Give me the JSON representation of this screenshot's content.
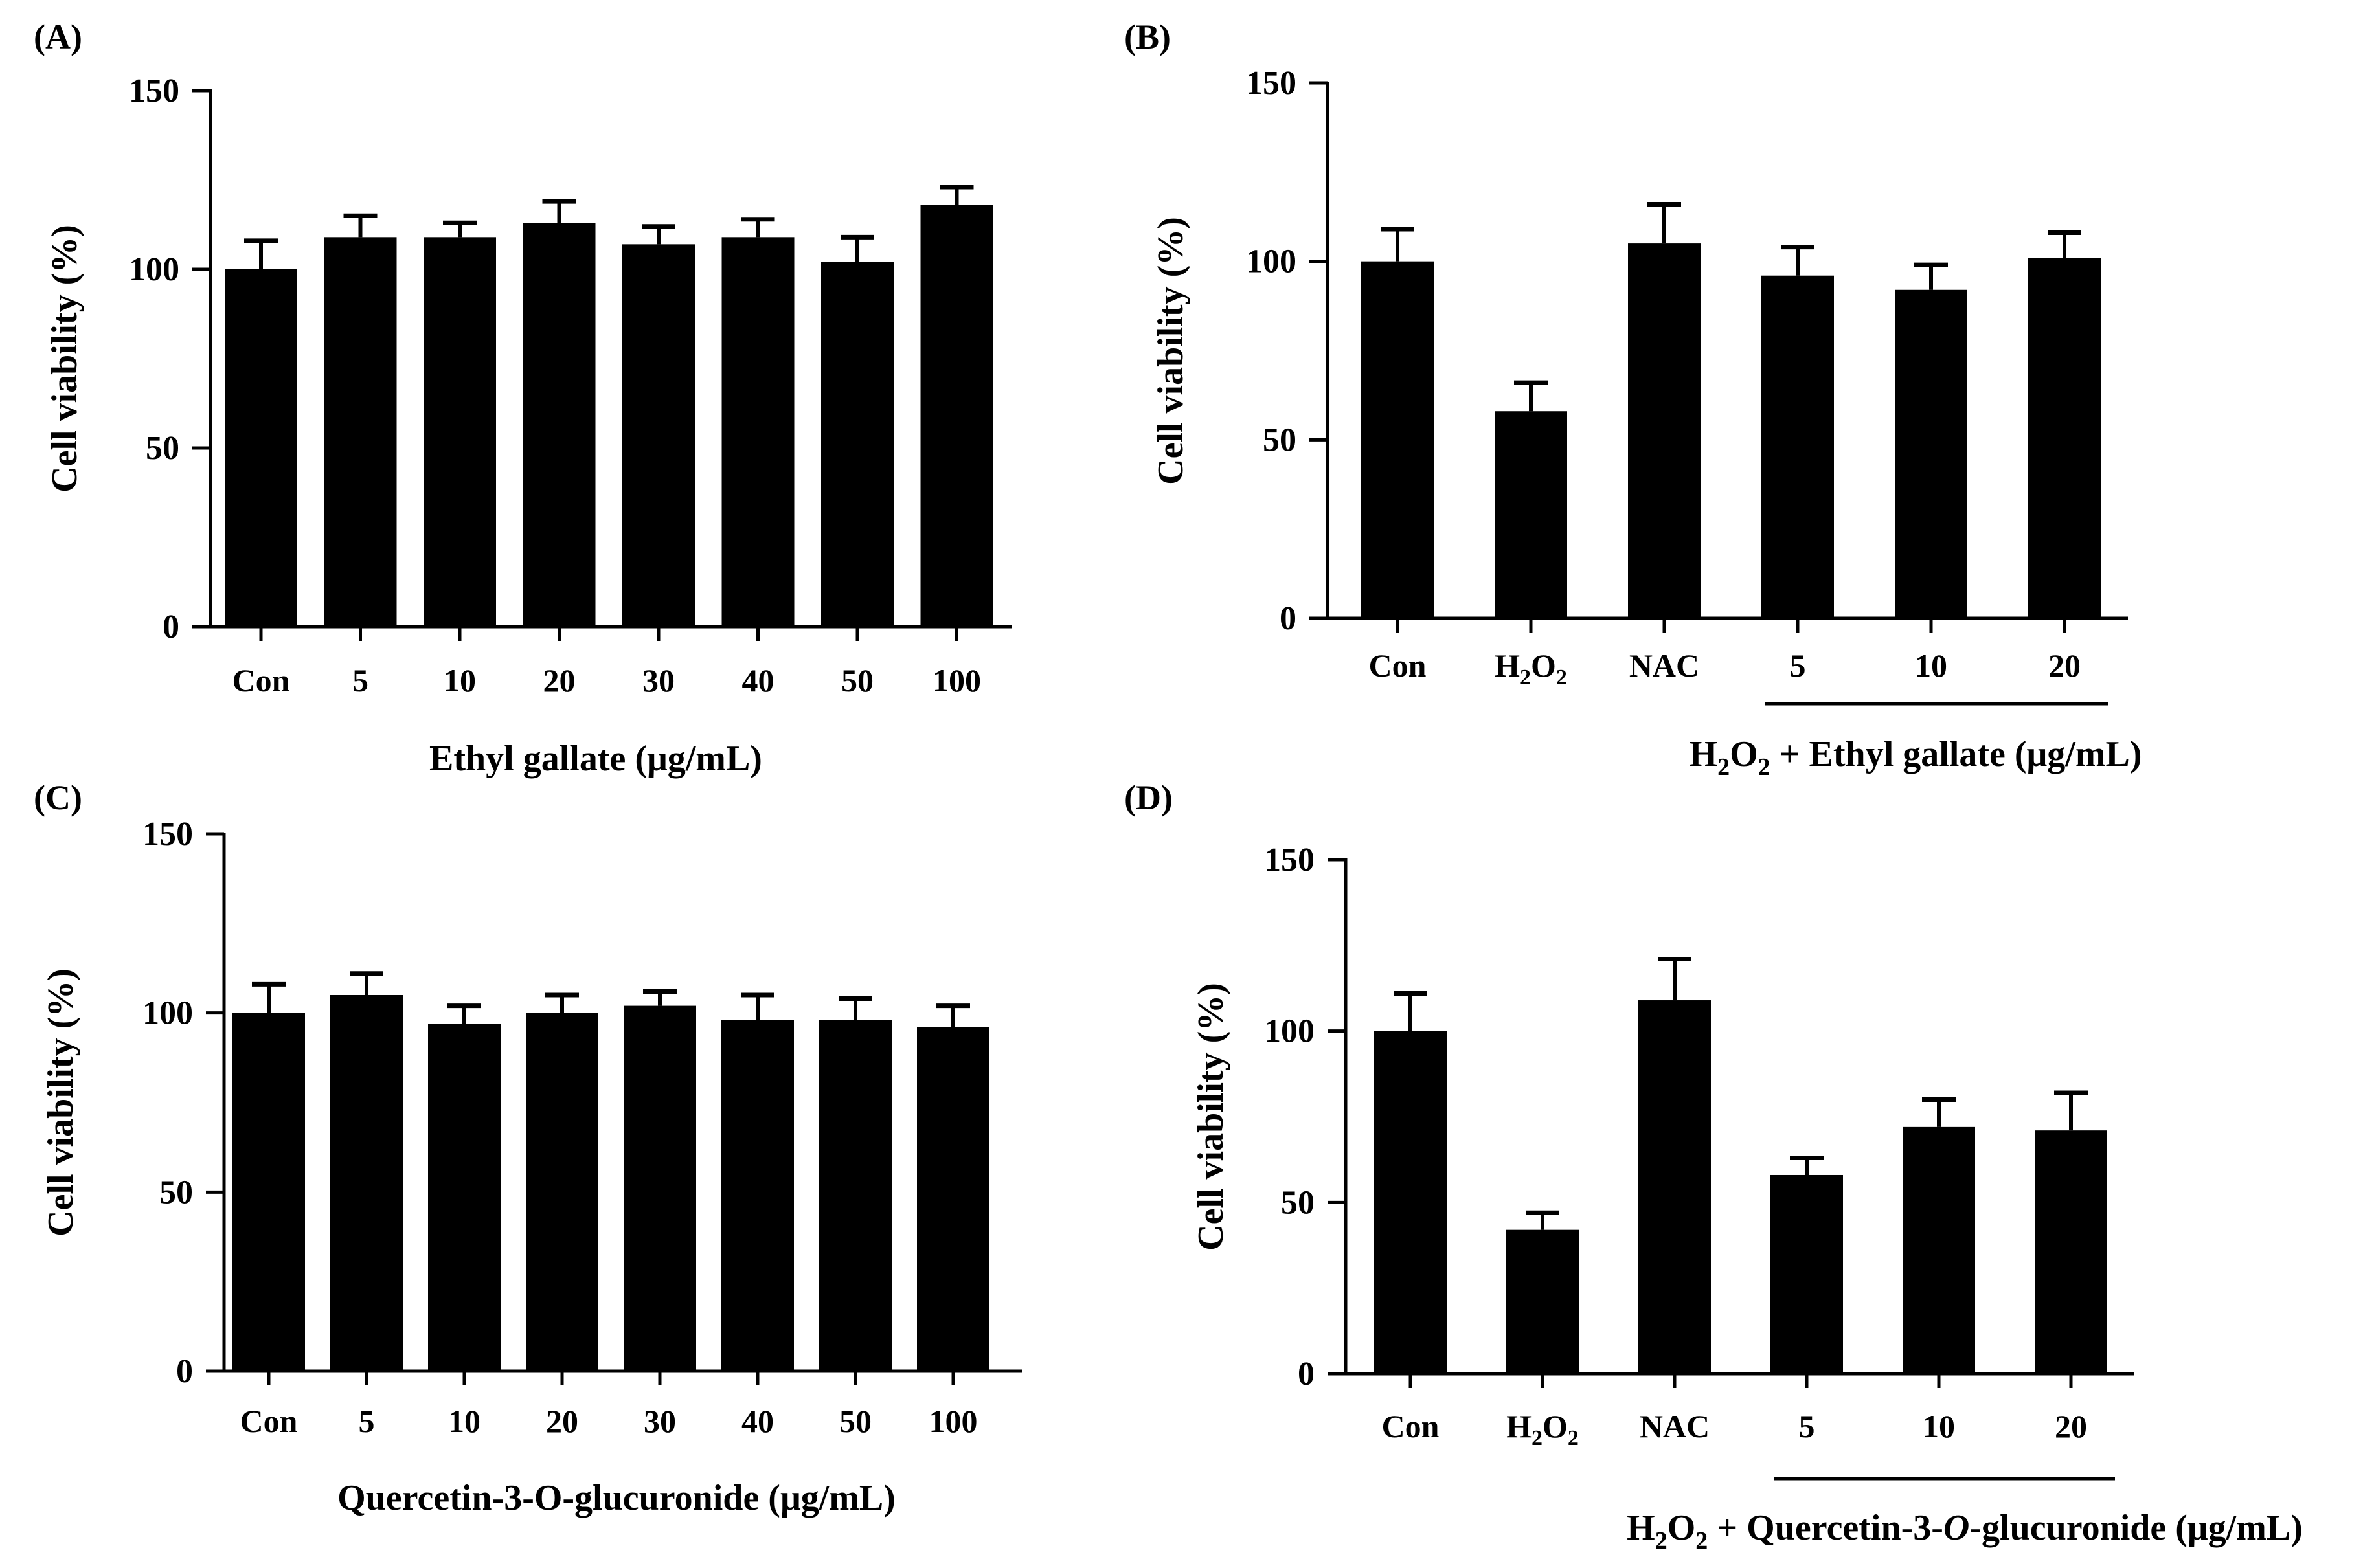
{
  "chart_data": [
    {
      "panel": "(A)",
      "type": "bar",
      "ylabel": "Cell viability (%)",
      "xlabel": "Ethyl gallate (μg/mL)",
      "ylim": [
        0,
        150
      ],
      "yticks": [
        "0",
        "50",
        "100",
        "150"
      ],
      "categories": [
        "Con",
        "5",
        "10",
        "20",
        "30",
        "40",
        "50",
        "100"
      ],
      "values": [
        100,
        109,
        109,
        113,
        107,
        109,
        102,
        118
      ],
      "errors": [
        8,
        6,
        4,
        6,
        5,
        5,
        7,
        5
      ],
      "bar_color": "#000000"
    },
    {
      "panel": "(B)",
      "type": "bar",
      "ylabel": "Cell viability (%)",
      "xlabel": {
        "prefix": "H",
        "sub1": "2",
        "mid": "O",
        "sub2": "2",
        "suffix": " + Ethyl gallate (μg/mL)"
      },
      "ylim": [
        0,
        150
      ],
      "yticks": [
        "0",
        "50",
        "100",
        "150"
      ],
      "categories": [
        "Con",
        "H2O2",
        "NAC",
        "5",
        "10",
        "20"
      ],
      "values": [
        100,
        58,
        105,
        96,
        92,
        101
      ],
      "errors": [
        9,
        8,
        11,
        8,
        7,
        7
      ],
      "bracket_from": 3,
      "bar_color": "#000000"
    },
    {
      "panel": "(C)",
      "type": "bar",
      "ylabel": "Cell viability (%)",
      "xlabel": "Quercetin-3-O-glucuronide (μg/mL)",
      "ylim": [
        0,
        150
      ],
      "yticks": [
        "0",
        "50",
        "100",
        "150"
      ],
      "categories": [
        "Con",
        "5",
        "10",
        "20",
        "30",
        "40",
        "50",
        "100"
      ],
      "values": [
        100,
        105,
        97,
        100,
        102,
        98,
        98,
        96
      ],
      "errors": [
        8,
        6,
        5,
        5,
        4,
        7,
        6,
        6
      ],
      "bar_color": "#000000"
    },
    {
      "panel": "(D)",
      "type": "bar",
      "ylabel": "Cell viability (%)",
      "xlabel": {
        "prefix": "H",
        "sub1": "2",
        "mid": "O",
        "sub2": "2",
        "suffix": " + Quercetin-3-",
        "italic": "O",
        "suffix2": "-glucuronide (μg/mL)"
      },
      "ylim": [
        0,
        150
      ],
      "yticks": [
        "0",
        "50",
        "100",
        "150"
      ],
      "categories": [
        "Con",
        "H2O2",
        "NAC",
        "5",
        "10",
        "20"
      ],
      "values": [
        100,
        42,
        109,
        58,
        72,
        71
      ],
      "errors": [
        11,
        5,
        12,
        5,
        8,
        11
      ],
      "bracket_from": 3,
      "bar_color": "#000000"
    }
  ]
}
